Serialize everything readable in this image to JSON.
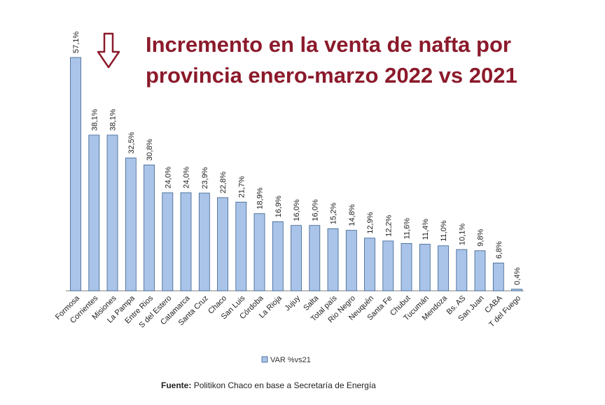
{
  "chart_data": {
    "type": "bar",
    "title": "Incremento en la venta de nafta por provincia enero-marzo 2022 vs 2021",
    "categories": [
      "Formosa",
      "Corrientes",
      "Misiones",
      "La Pampa",
      "Entre Rios",
      "S del Estero",
      "Catamarca",
      "Santa Cruz",
      "Chaco",
      "San Luis",
      "Córdoba",
      "La Rioja",
      "Jujuy",
      "Salta",
      "Total país",
      "Rio Negro",
      "Neuquén",
      "Santa Fe",
      "Chubut",
      "Tucumán",
      "Mendoza",
      "Bs. AS",
      "San Juan",
      "CABA",
      "T del Fuego"
    ],
    "series": [
      {
        "name": "VAR %vs21",
        "values": [
          57.1,
          38.1,
          38.1,
          32.5,
          30.8,
          24.0,
          24.0,
          23.9,
          22.8,
          21.7,
          18.9,
          16.9,
          16.0,
          16.0,
          15.2,
          14.8,
          12.9,
          12.2,
          11.6,
          11.4,
          11.0,
          10.1,
          9.8,
          6.8,
          0.4
        ],
        "labels": [
          "57,1%",
          "38,1%",
          "38,1%",
          "32,5%",
          "30,8%",
          "24,0%",
          "24,0%",
          "23,9%",
          "22,8%",
          "21,7%",
          "18,9%",
          "16,9%",
          "16,0%",
          "16,0%",
          "15,2%",
          "14,8%",
          "12,9%",
          "12,2%",
          "11,6%",
          "11,4%",
          "11,0%",
          "10,1%",
          "9,8%",
          "6,8%",
          "0,4%"
        ]
      }
    ],
    "legend": "bottom",
    "bar_color": "#a9c4e8",
    "bar_stroke": "#3a5f8f",
    "grid": false
  },
  "title_color": "#8b1a2b",
  "arrow_icon": "arrow-down-icon",
  "source": {
    "label": "Fuente:",
    "text": "Politikon Chaco en base a Secretaría de Energía"
  }
}
